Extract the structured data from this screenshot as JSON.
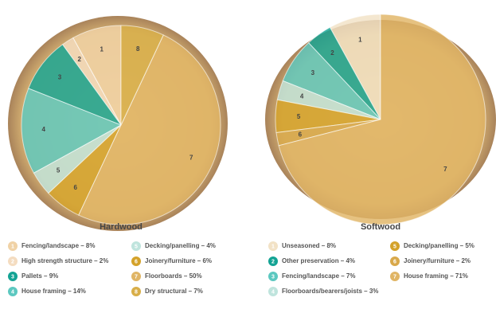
{
  "chart_data": [
    {
      "type": "pie",
      "title": "Hardwood",
      "categories": [
        "Fencing/landscape – 8%",
        "High strength structure – 2%",
        "Pallets – 9%",
        "House framing – 14%",
        "Decking/panelling – 4%",
        "Joinery/furniture – 6%",
        "Floorboards – 50%",
        "Dry structural – 7%"
      ],
      "values": [
        8,
        2,
        9,
        14,
        4,
        6,
        50,
        7
      ],
      "slice_labels": [
        "1",
        "2",
        "3",
        "4",
        "5",
        "6",
        "7",
        "8"
      ],
      "colors": [
        "#f0d2a6",
        "#f4dcc0",
        "#13a394",
        "#5cc8c0",
        "#bfe4dd",
        "#d4a22a",
        "#e0b565",
        "#d8ae48"
      ]
    },
    {
      "type": "pie",
      "title": "Softwood",
      "categories": [
        "Unseasoned – 8%",
        "Other preservation – 4%",
        "Fencing/landscape – 7%",
        "Floorboards/bearers/joists – 3%",
        "Decking/panelling – 5%",
        "Joinery/furniture – 2%",
        "House framing – 71%"
      ],
      "values": [
        8,
        4,
        7,
        3,
        5,
        2,
        71
      ],
      "slice_labels": [
        "1",
        "2",
        "3",
        "4",
        "5",
        "6",
        "7"
      ],
      "colors": [
        "#f2e2c6",
        "#13a394",
        "#5cc8c0",
        "#bfe4dd",
        "#d4a22a",
        "#d8a84a",
        "#e0b565"
      ]
    }
  ]
}
